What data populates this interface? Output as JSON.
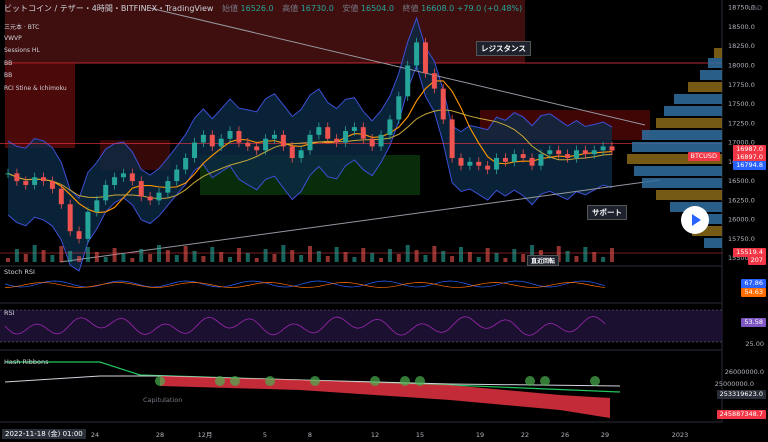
{
  "header": {
    "title": "ビットコイン / テザー・4時間・BITFINEX・TradingView",
    "open_label": "始値",
    "open": "16526.0",
    "high_label": "高値",
    "high": "16730.0",
    "low_label": "安値",
    "low": "16504.0",
    "close_label": "終値",
    "close": "16608.0",
    "change": "+79.0 (+0.48%)"
  },
  "indicators": [
    "三元本 · BTC",
    "VWVP",
    "Sessions HL",
    "BB",
    "BB",
    "RCI Stine & Ichimoku"
  ],
  "annotations": {
    "resistance": "レジスタンス",
    "support": "サポート",
    "volume_note": "直近回転"
  },
  "price_tags": {
    "symbol": "BTCUSD",
    "p1": "16987.0",
    "p2": "16897.0",
    "p3": "16794.8",
    "p4": "15519.4",
    "p5": "207",
    "currency": "USD"
  },
  "panes": {
    "stoch_label": "Stoch RSI",
    "stoch_k": "67.86",
    "stoch_d": "54.63",
    "rsi_label": "RSI",
    "rsi_val": "53.58",
    "rsi_low": "25.00",
    "hash_label": "Hash Ribbons",
    "hash_top": "26000000.0",
    "hash_mid": "25000000.0",
    "hash_v1": "253319623.0",
    "hash_v2": "245887348.7",
    "hash_note": "Capitulation"
  },
  "time_axis": {
    "date_badge": "2022-11-18 (金)  01:00",
    "ticks": [
      "24",
      "28",
      "12月",
      "5",
      "8",
      "12",
      "15",
      "19",
      "22",
      "26",
      "29",
      "2023"
    ]
  },
  "chart_data": {
    "type": "line",
    "title": "ビットコイン / テザー・4時間・BITFINEX・TradingView",
    "xlabel": "",
    "ylabel": "USD",
    "price_ticks": [
      18750,
      18500,
      18250,
      18000,
      17750,
      17500,
      17250,
      17000,
      16750,
      16500,
      16250,
      16000,
      15750,
      15500
    ],
    "ylim": [
      15450,
      18850
    ],
    "x_ticks": [
      "24",
      "28",
      "12月",
      "5",
      "8",
      "12",
      "15",
      "19",
      "22",
      "26",
      "29",
      "2023"
    ],
    "series": [
      {
        "values": [
          16600,
          16500,
          16450,
          16550,
          16500,
          16400,
          16200,
          15850,
          15750,
          16100,
          16250,
          16450,
          16550,
          16600,
          16500,
          16300,
          16250,
          16350,
          16500,
          16650,
          16800,
          17000,
          17100,
          16950,
          17050,
          17150,
          17000,
          16950,
          16900,
          17050,
          17100,
          16950,
          16800,
          16900,
          17100,
          17200,
          17050,
          17000,
          17150,
          17200,
          17050,
          16950,
          17100,
          17300,
          17600,
          18000,
          18300,
          17900,
          17700,
          17300,
          16800,
          16700,
          16750,
          16700,
          16650,
          16800,
          16750,
          16850,
          16800,
          16700,
          16850,
          16900,
          16850,
          16800,
          16900,
          16850,
          16900,
          16950,
          16897
        ]
      }
    ],
    "legend": "none",
    "grid": false
  }
}
